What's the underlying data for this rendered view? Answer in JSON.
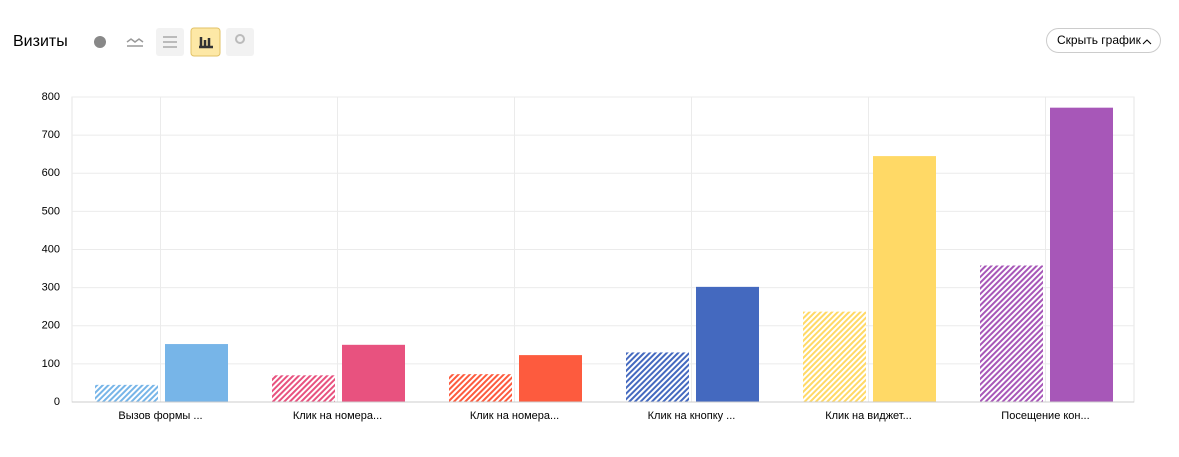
{
  "toolbar": {
    "button": "Скрыть график"
  },
  "chart_data": {
    "type": "bar",
    "title": "Визиты",
    "categories": [
      "Вызов формы ...",
      "Клик на номера...",
      "Клик на номера...",
      "Клик на кнопку ...",
      "Клик на виджет...",
      "Посещение кон..."
    ],
    "colors": [
      "#77b5e8",
      "#e8527f",
      "#fd5b3e",
      "#4469bf",
      "#ffd966",
      "#a757b8"
    ],
    "series": [
      {
        "pattern": "hatched",
        "values": [
          45,
          70,
          73,
          130,
          237,
          358
        ]
      },
      {
        "pattern": "solid",
        "values": [
          152,
          150,
          123,
          302,
          645,
          772
        ]
      }
    ],
    "ylim": [
      0,
      800
    ],
    "yticks": [
      0,
      100,
      200,
      300,
      400,
      500,
      600,
      700,
      800
    ],
    "grid": true
  }
}
